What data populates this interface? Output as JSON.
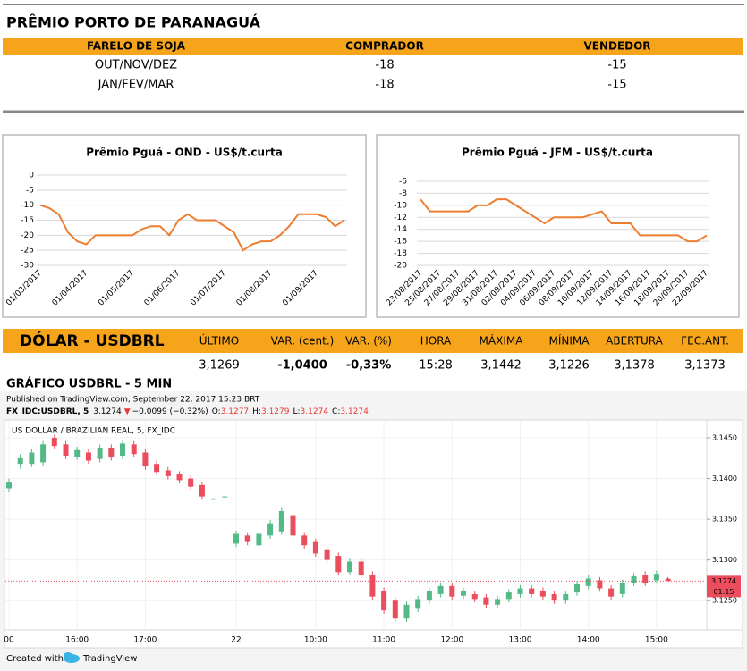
{
  "premio": {
    "title": "PRÊMIO PORTO DE PARANAGUÁ",
    "columns": [
      "FARELO DE SOJA",
      "COMPRADOR",
      "VENDEDOR"
    ],
    "rows": [
      [
        "OUT/NOV/DEZ",
        -18,
        -15
      ],
      [
        "JAN/FEV/MAR",
        -18,
        -15
      ]
    ]
  },
  "dolar": {
    "title": "DÓLAR  - USDBRL",
    "columns": [
      "ÚLTIMO",
      "VAR. (cent.)",
      "VAR. (%)",
      "HORA",
      "MÁXIMA",
      "MÍNIMA",
      "ABERTURA",
      "FEC.ANT."
    ],
    "values": [
      "3,1269",
      "-1,0400",
      "-0,33%",
      "15:28",
      "3,1442",
      "3,1226",
      "3,1378",
      "3,1373"
    ]
  },
  "tradingview": {
    "title": "GRÁFICO USDBRL - 5 MIN",
    "published": "Published on TradingView.com, September 22, 2017 15:23 BRT",
    "symbol": "FX_IDC:USDBRL, 5",
    "price": "3.1274",
    "arrow": "▼",
    "change": "−0.0099 (−0.32%)",
    "ohlc": [
      [
        "O:",
        "3.1277"
      ],
      [
        "H:",
        "3.1279"
      ],
      [
        "L:",
        "3.1274"
      ],
      [
        "C:",
        "3.1274"
      ]
    ],
    "footer": [
      "Created with",
      "TradingView"
    ]
  },
  "chart_data": [
    {
      "type": "line",
      "title": "Prêmio Pguá - OND - US$/t.curta",
      "color": "#ed7d31",
      "grid": true,
      "categories": [
        "01/03/2017",
        null,
        null,
        null,
        null,
        "01/04/2017",
        null,
        null,
        null,
        null,
        "01/05/2017",
        null,
        null,
        null,
        null,
        "01/06/2017",
        null,
        null,
        null,
        null,
        "01/07/2017",
        null,
        null,
        null,
        null,
        "01/08/2017",
        null,
        null,
        null,
        null,
        "01/09/2017",
        null,
        null,
        null
      ],
      "values": [
        -10,
        -11,
        -13,
        -19,
        -22,
        -23,
        -20,
        -20,
        -20,
        -20,
        -20,
        -18,
        -17,
        -17,
        -20,
        -15,
        -13,
        -15,
        -15,
        -15,
        -17,
        -19,
        -25,
        -23,
        -22,
        -22,
        -20,
        -17,
        -13,
        -13,
        -13,
        -14,
        -17,
        -15
      ],
      "ylim": [
        -30,
        0
      ],
      "yticks": [
        0,
        -5,
        -10,
        -15,
        -20,
        -25,
        -30
      ]
    },
    {
      "type": "line",
      "title": "Prêmio Pguá - JFM - US$/t.curta",
      "color": "#ed7d31",
      "grid": true,
      "categories": [
        "23/08/2017",
        null,
        "25/08/2017",
        null,
        "27/08/2017",
        null,
        "29/08/2017",
        null,
        "31/08/2017",
        null,
        "02/09/2017",
        null,
        "04/09/2017",
        null,
        "06/09/2017",
        null,
        "08/09/2017",
        null,
        "10/09/2017",
        null,
        "12/09/2017",
        null,
        "14/09/2017",
        null,
        "16/09/2017",
        null,
        "18/09/2017",
        null,
        "20/09/2017",
        null,
        "22/09/2017"
      ],
      "values": [
        -9,
        -11,
        -11,
        -11,
        -11,
        -11,
        -10,
        -10,
        -9,
        -9,
        -10,
        -11,
        -12,
        -13,
        -12,
        -12,
        -12,
        -12,
        -11.5,
        -11,
        -13,
        -13,
        -13,
        -15,
        -15,
        -15,
        -15,
        -15,
        -16,
        -16,
        -15
      ],
      "ylim": [
        -20,
        -6
      ],
      "yticks": [
        -6,
        -8,
        -10,
        -12,
        -14,
        -16,
        -18,
        -20
      ]
    },
    {
      "type": "candlestick",
      "title": "US DOLLAR / BRAZILIAN REAL, 5, FX_IDC",
      "up_color": "#53b987",
      "down_color": "#eb4d5c",
      "grid": true,
      "categories": [
        "00",
        null,
        null,
        null,
        null,
        null,
        "16:00",
        null,
        null,
        null,
        null,
        null,
        "17:00",
        null,
        null,
        null,
        null,
        null,
        null,
        null,
        "22",
        null,
        null,
        null,
        null,
        null,
        null,
        "10:00",
        null,
        null,
        null,
        null,
        null,
        "11:00",
        null,
        null,
        null,
        null,
        null,
        "12:00",
        null,
        null,
        null,
        null,
        null,
        "13:00",
        null,
        null,
        null,
        null,
        null,
        "14:00",
        null,
        null,
        null,
        null,
        null,
        "15:00",
        null
      ],
      "open": [
        3.1388,
        3.1418,
        3.1418,
        3.142,
        3.145,
        3.1442,
        3.1427,
        3.1432,
        3.1424,
        3.1438,
        3.1428,
        3.1442,
        3.1432,
        3.1418,
        3.141,
        3.1405,
        3.14,
        3.1392,
        3.1375,
        3.1378,
        3.132,
        3.133,
        3.1318,
        3.133,
        3.1335,
        3.1355,
        3.133,
        3.1322,
        3.1312,
        3.1305,
        3.1285,
        3.1298,
        3.1282,
        3.1262,
        3.125,
        3.1228,
        3.124,
        3.125,
        3.1258,
        3.1268,
        3.1256,
        3.1258,
        3.1254,
        3.1245,
        3.1252,
        3.1258,
        3.1265,
        3.1262,
        3.1258,
        3.125,
        3.126,
        3.1268,
        3.1275,
        3.1265,
        3.1258,
        3.1272,
        3.1282,
        3.1275,
        3.1277
      ],
      "high": [
        3.14,
        3.143,
        3.1436,
        3.1446,
        3.1454,
        3.1446,
        3.1439,
        3.1436,
        3.1442,
        3.1442,
        3.1447,
        3.1446,
        3.1436,
        3.1422,
        3.1414,
        3.1409,
        3.1404,
        3.1396,
        3.1376,
        3.1379,
        3.1336,
        3.1334,
        3.1336,
        3.1349,
        3.1364,
        3.1359,
        3.1334,
        3.1326,
        3.1316,
        3.1309,
        3.1302,
        3.1302,
        3.1286,
        3.1266,
        3.1254,
        3.1249,
        3.1256,
        3.1266,
        3.1272,
        3.1272,
        3.1266,
        3.1262,
        3.1258,
        3.1256,
        3.1264,
        3.1269,
        3.1269,
        3.1266,
        3.1262,
        3.1262,
        3.1274,
        3.1281,
        3.1279,
        3.1269,
        3.1276,
        3.1284,
        3.1286,
        3.1287,
        3.1279
      ],
      "low": [
        3.1383,
        3.1412,
        3.1414,
        3.1416,
        3.1436,
        3.1424,
        3.1423,
        3.1418,
        3.142,
        3.1422,
        3.1424,
        3.1426,
        3.1411,
        3.1404,
        3.1399,
        3.1394,
        3.1386,
        3.1374,
        3.1374,
        3.1377,
        3.1316,
        3.1318,
        3.1314,
        3.1326,
        3.1331,
        3.1326,
        3.1314,
        3.1304,
        3.1296,
        3.1281,
        3.1281,
        3.1278,
        3.1251,
        3.1234,
        3.1224,
        3.1224,
        3.1236,
        3.1246,
        3.1254,
        3.1251,
        3.1252,
        3.1248,
        3.1241,
        3.1241,
        3.1248,
        3.1254,
        3.1254,
        3.1251,
        3.1246,
        3.1246,
        3.1256,
        3.1264,
        3.1261,
        3.1251,
        3.1254,
        3.1268,
        3.1268,
        3.1271,
        3.1274
      ],
      "close": [
        3.1395,
        3.1425,
        3.1432,
        3.1442,
        3.144,
        3.1428,
        3.1435,
        3.1422,
        3.1438,
        3.1426,
        3.1443,
        3.143,
        3.1415,
        3.1408,
        3.1403,
        3.1398,
        3.139,
        3.1378,
        3.1375,
        3.1378,
        3.1332,
        3.1322,
        3.1332,
        3.1345,
        3.136,
        3.133,
        3.1318,
        3.1308,
        3.13,
        3.1285,
        3.1298,
        3.1282,
        3.1255,
        3.1238,
        3.1228,
        3.1245,
        3.1252,
        3.1262,
        3.1268,
        3.1255,
        3.1262,
        3.1252,
        3.1245,
        3.1252,
        3.126,
        3.1265,
        3.1258,
        3.1255,
        3.125,
        3.1258,
        3.127,
        3.1277,
        3.1265,
        3.1255,
        3.1272,
        3.128,
        3.1272,
        3.1283,
        3.1274
      ],
      "last_price": {
        "value": 3.1274,
        "label": "3.1274"
      },
      "countdown": "01:15",
      "ylim": [
        3.1214,
        3.1472
      ],
      "yticks": [
        {
          "value": 3.125,
          "label": "3.1250"
        },
        {
          "value": 3.13,
          "label": "3.1300"
        },
        {
          "value": 3.135,
          "label": "3.1350"
        },
        {
          "value": 3.14,
          "label": "3.1400"
        },
        {
          "value": 3.145,
          "label": "3.1450"
        }
      ]
    }
  ]
}
